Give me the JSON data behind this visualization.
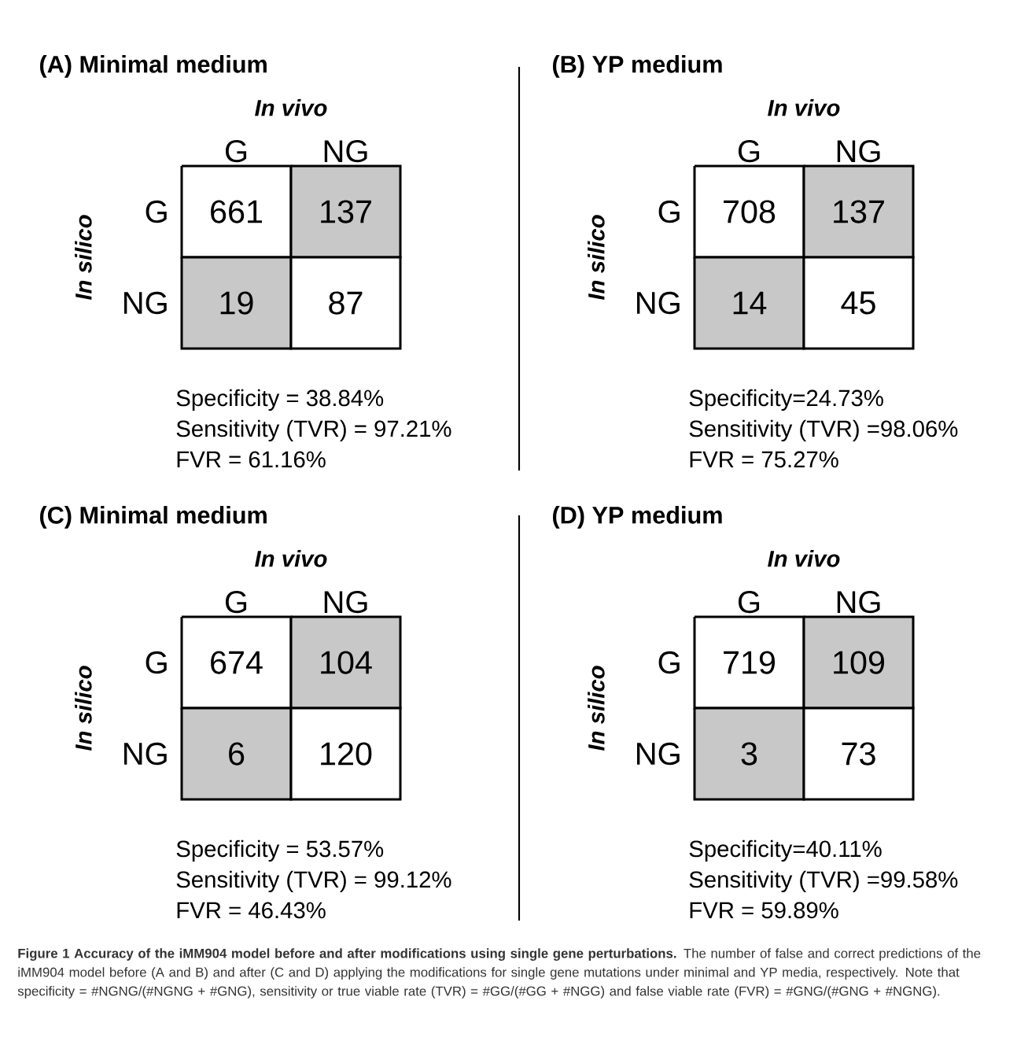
{
  "chart_data": [
    {
      "type": "heatmap",
      "title": "(A) Minimal medium",
      "xlabel": "In vivo",
      "ylabel": "In silico",
      "categories": [
        "G",
        "NG"
      ],
      "y_categories": [
        "G",
        "NG"
      ],
      "cells": [
        [
          661,
          137
        ],
        [
          19,
          87
        ]
      ],
      "data_labels": true,
      "annotations": [
        "Specificity = 38.84%",
        "Sensitivity (TVR) = 97.21%",
        "FVR = 61.16%"
      ]
    },
    {
      "type": "heatmap",
      "title": "(B) YP medium",
      "xlabel": "In vivo",
      "ylabel": "In silico",
      "categories": [
        "G",
        "NG"
      ],
      "y_categories": [
        "G",
        "NG"
      ],
      "cells": [
        [
          708,
          137
        ],
        [
          14,
          45
        ]
      ],
      "data_labels": true,
      "annotations": [
        "Specificity=24.73%",
        "Sensitivity (TVR) =98.06%",
        "FVR = 75.27%"
      ]
    },
    {
      "type": "heatmap",
      "title": "(C) Minimal medium",
      "xlabel": "In vivo",
      "ylabel": "In silico",
      "categories": [
        "G",
        "NG"
      ],
      "y_categories": [
        "G",
        "NG"
      ],
      "cells": [
        [
          674,
          104
        ],
        [
          6,
          120
        ]
      ],
      "data_labels": true,
      "annotations": [
        "Specificity = 53.57%",
        "Sensitivity (TVR) = 99.12%",
        "FVR = 46.43%"
      ]
    },
    {
      "type": "heatmap",
      "title": "(D) YP medium",
      "xlabel": "In vivo",
      "ylabel": "In silico",
      "categories": [
        "G",
        "NG"
      ],
      "y_categories": [
        "G",
        "NG"
      ],
      "cells": [
        [
          719,
          109
        ],
        [
          3,
          73
        ]
      ],
      "data_labels": true,
      "annotations": [
        "Specificity=40.11%",
        "Sensitivity (TVR) =99.58%",
        "FVR = 59.89%",
        "Figure 1 Accuracy of the iMM904 model before and after modifications using single gene perturbations.",
        "The number of false and correct predictions of the iMM904 model before (A and B) and after (C and D) applying the modifications for single gene mutations under minimal and YP media, respectively. Note that specificity = #NGNG/(#NGNG + #GNG), sensitivity or true viable rate (TVR) = #GG/(#GG + #NGG) and false viable rate (FVR) = #GNG/(#GNG + #NGNG)."
      ]
    }
  ]
}
